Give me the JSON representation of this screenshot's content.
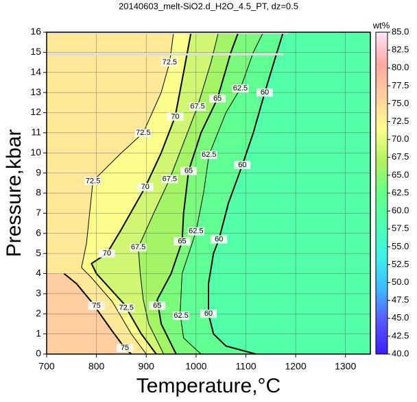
{
  "chart_data": {
    "type": "contour",
    "title": "20140603_melt-SiO2.d_H2O_4.5_PT, dz=0.5",
    "xlabel": "Temperature,°C",
    "ylabel": "Pressure,kbar",
    "xlim": [
      700,
      1350
    ],
    "xticks": [
      700,
      800,
      900,
      1000,
      1100,
      1200,
      1300
    ],
    "ylim": [
      0,
      16
    ],
    "yticks": [
      0,
      1,
      2,
      3,
      4,
      5,
      6,
      7,
      8,
      9,
      10,
      11,
      12,
      13,
      14,
      15,
      16
    ],
    "grid": true,
    "colorbar": {
      "label": "wt%",
      "clim": [
        40,
        85
      ],
      "colormap": [
        "#3d1cff",
        "#5a55ff",
        "#3fb7ff",
        "#3ff0e8",
        "#4fffb0",
        "#66ff88",
        "#b2f060",
        "#ffff90",
        "#ffd0a0",
        "#ffa8a0",
        "#ffe4ff"
      ],
      "ticks": [
        {
          "value": 40,
          "label": "40.0"
        },
        {
          "value": 42.5,
          "label": "42.5"
        },
        {
          "value": 45,
          "label": "45.0"
        },
        {
          "value": 47.5,
          "label": "47.5"
        },
        {
          "value": 50,
          "label": "50.0"
        },
        {
          "value": 52.5,
          "label": "52.5"
        },
        {
          "value": 55,
          "label": "55.0"
        },
        {
          "value": 57.5,
          "label": "57.5"
        },
        {
          "value": 60,
          "label": "60.0"
        },
        {
          "value": 62.5,
          "label": "62.5"
        },
        {
          "value": 65,
          "label": "65.0"
        },
        {
          "value": 67.5,
          "label": "67.5"
        },
        {
          "value": 70,
          "label": "70.0"
        },
        {
          "value": 72.5,
          "label": "72.5"
        },
        {
          "value": 75,
          "label": "75.0"
        },
        {
          "value": 77.5,
          "label": "77.5"
        },
        {
          "value": 80,
          "label": "80.0"
        },
        {
          "value": 82.5,
          "label": "82.5"
        },
        {
          "value": 85,
          "label": "85.0"
        }
      ]
    },
    "contours": [
      {
        "level": 60,
        "x": [
          1120,
          1060,
          1035,
          1025,
          1025,
          1035,
          1046,
          1065,
          1093,
          1115,
          1138,
          1160,
          1175
        ],
        "y": [
          0,
          0.4,
          1,
          2,
          3.5,
          5,
          5.7,
          7.5,
          9.4,
          11,
          13,
          14.8,
          16
        ]
      },
      {
        "level": 62.5,
        "x": [
          1010,
          975,
          968,
          972,
          1000,
          1015,
          1026,
          1060,
          1089,
          1115,
          1135
        ],
        "y": [
          0,
          0.8,
          2,
          4,
          6.1,
          8,
          9.9,
          12,
          13.2,
          15,
          16
        ]
      },
      {
        "level": 65,
        "x": [
          960,
          930,
          922,
          950,
          972,
          975,
          985,
          1010,
          1043,
          1070,
          1085
        ],
        "y": [
          0,
          1.5,
          2.7,
          4,
          5.6,
          7,
          9.1,
          11,
          12.7,
          15,
          16
        ]
      },
      {
        "level": 67.5,
        "x": [
          935,
          905,
          894,
          888,
          884,
          915,
          947,
          975,
          1003,
          1030,
          1045
        ],
        "y": [
          0,
          1.5,
          2.7,
          4,
          5.3,
          7,
          8.7,
          10.5,
          12.3,
          14.5,
          16
        ]
      },
      {
        "level": 70,
        "x": [
          920,
          890,
          855,
          800,
          790,
          821,
          850,
          898,
          930,
          958,
          975,
          990
        ],
        "y": [
          0,
          1,
          2.5,
          4,
          4.5,
          5,
          6.2,
          8.3,
          10,
          11.8,
          14,
          16
        ]
      },
      {
        "level": 72.5,
        "x": [
          900,
          870,
          832,
          790,
          770,
          780,
          793,
          850,
          894,
          930,
          947,
          955
        ],
        "y": [
          0,
          1,
          2.6,
          3.8,
          4.3,
          5.5,
          8.6,
          10,
          11,
          13,
          14.5,
          16
        ]
      },
      {
        "level": 75,
        "x": [
          870,
          857,
          830,
          790,
          760,
          735
        ],
        "y": [
          0,
          0.3,
          1.2,
          2.6,
          3.5,
          4
        ]
      }
    ],
    "contour_labels": [
      {
        "value": 60,
        "x": 1138,
        "y": 13
      },
      {
        "value": 60,
        "x": 1093,
        "y": 9.4
      },
      {
        "value": 60,
        "x": 1046,
        "y": 5.7
      },
      {
        "value": 60,
        "x": 1025,
        "y": 2
      },
      {
        "value": 62.5,
        "x": 1089,
        "y": 13.2
      },
      {
        "value": 62.5,
        "x": 1026,
        "y": 9.9
      },
      {
        "value": 62.5,
        "x": 1000,
        "y": 6.1
      },
      {
        "value": 62.5,
        "x": 970,
        "y": 1.9
      },
      {
        "value": 65,
        "x": 1043,
        "y": 12.7
      },
      {
        "value": 65,
        "x": 985,
        "y": 9.1
      },
      {
        "value": 65,
        "x": 972,
        "y": 5.6
      },
      {
        "value": 65,
        "x": 922,
        "y": 2.4
      },
      {
        "value": 67.5,
        "x": 1003,
        "y": 12.3
      },
      {
        "value": 67.5,
        "x": 947,
        "y": 8.7
      },
      {
        "value": 67.5,
        "x": 884,
        "y": 5.3
      },
      {
        "value": 70,
        "x": 958,
        "y": 11.8
      },
      {
        "value": 70,
        "x": 898,
        "y": 8.3
      },
      {
        "value": 70,
        "x": 821,
        "y": 5
      },
      {
        "value": 72.5,
        "x": 947,
        "y": 14.5
      },
      {
        "value": 72.5,
        "x": 894,
        "y": 11
      },
      {
        "value": 72.5,
        "x": 793,
        "y": 8.6
      },
      {
        "value": 72.5,
        "x": 860,
        "y": 2.3
      },
      {
        "value": 75,
        "x": 857,
        "y": 0.3
      },
      {
        "value": 75,
        "x": 800,
        "y": 2.4
      }
    ]
  }
}
